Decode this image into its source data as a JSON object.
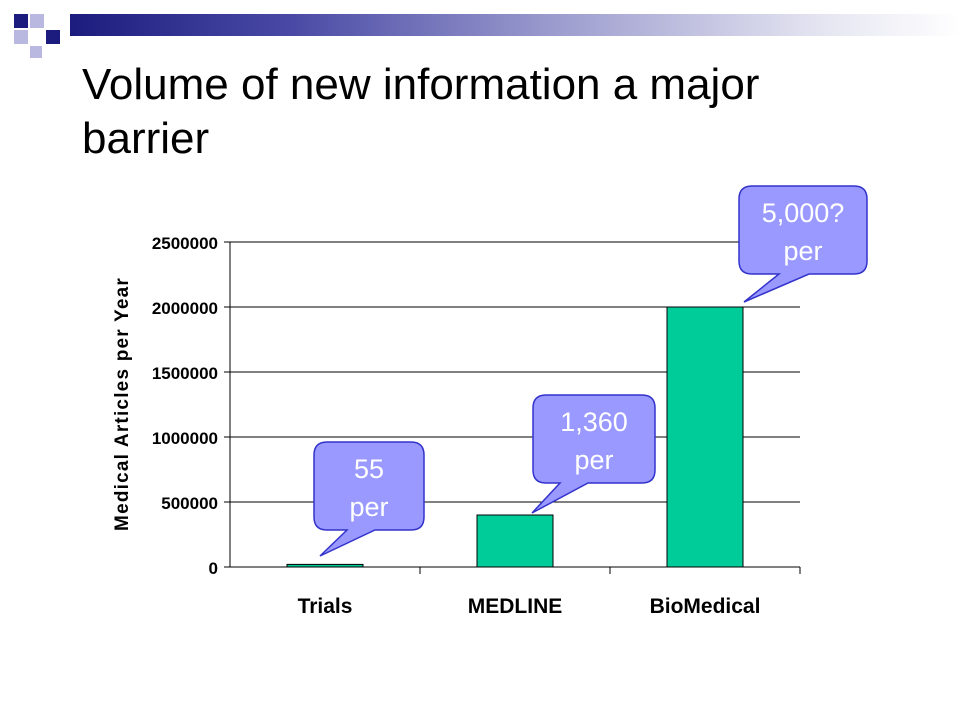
{
  "slide": {
    "title_lines": [
      "Volume of new information a major",
      "barrier"
    ]
  },
  "colors": {
    "bar": "#00cc99",
    "callout": "#9999ff",
    "callout_border": "#3333cc",
    "deco_dark": "#1c1c7e",
    "deco_light": "#b8b8e0"
  },
  "icons": [
    "decorative-squares-icon"
  ],
  "chart_data": {
    "type": "bar",
    "title": "",
    "xlabel": "",
    "ylabel": "Medical Articles per Year",
    "categories": [
      "Trials",
      "MEDLINE",
      "BioMedical"
    ],
    "values": [
      20000,
      400000,
      2000000
    ],
    "ylim": [
      0,
      2500000
    ],
    "yticks": [
      0,
      500000,
      1000000,
      1500000,
      2000000,
      2500000
    ],
    "ytick_labels": [
      "0",
      "500000",
      "1000000",
      "1500000",
      "2000000",
      "2500000"
    ],
    "grid": true,
    "annotations": [
      {
        "category": "Trials",
        "lines": [
          "55",
          "per"
        ]
      },
      {
        "category": "MEDLINE",
        "lines": [
          "1,360",
          "per"
        ]
      },
      {
        "category": "BioMedical",
        "lines": [
          "5,000?",
          "per"
        ]
      }
    ]
  }
}
